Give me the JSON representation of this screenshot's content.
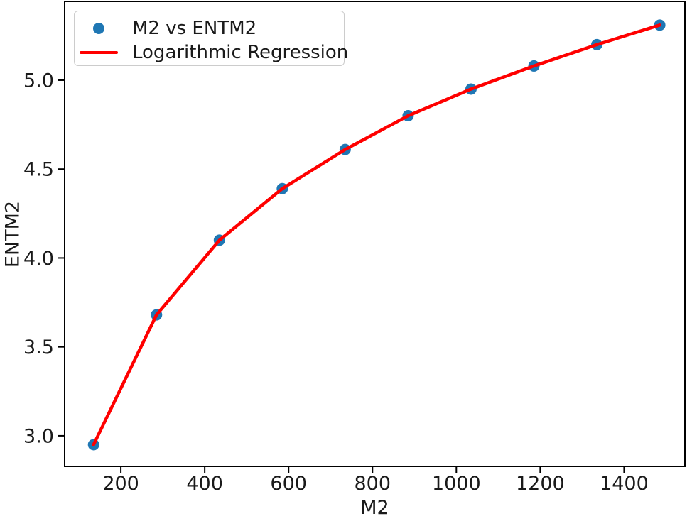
{
  "figure": {
    "background": "#ffffff",
    "text_color": "#1a1a1a",
    "spine_color": "#000000"
  },
  "chart_data": {
    "type": "scatter",
    "title": "",
    "xlabel": "M2",
    "ylabel": "ENTM2",
    "xlim": [
      66,
      1545
    ],
    "ylim": [
      2.828,
      5.443
    ],
    "grid": false,
    "legend_position": "upper left",
    "x_ticks": {
      "values": [
        200,
        400,
        600,
        800,
        1000,
        1200,
        1400
      ],
      "labels": [
        "200",
        "400",
        "600",
        "800",
        "1000",
        "1200",
        "1400"
      ]
    },
    "y_ticks": {
      "values": [
        3.0,
        3.5,
        4.0,
        4.5,
        5.0
      ],
      "labels": [
        "3.0",
        "3.5",
        "4.0",
        "4.5",
        "5.0"
      ]
    },
    "series": [
      {
        "name": "M2 vs ENTM2",
        "type": "scatter",
        "color": "#1f77b4",
        "marker": "circle",
        "x": [
          135,
          285,
          435,
          585,
          735,
          885,
          1035,
          1185,
          1335,
          1485
        ],
        "y": [
          2.95,
          3.68,
          4.1,
          4.39,
          4.61,
          4.8,
          4.95,
          5.08,
          5.2,
          5.31
        ]
      },
      {
        "name": "Logarithmic Regression",
        "type": "line",
        "color": "#ff0000",
        "x": [
          135,
          285,
          435,
          585,
          735,
          885,
          1035,
          1185,
          1335,
          1485
        ],
        "y": [
          2.95,
          3.68,
          4.1,
          4.39,
          4.61,
          4.8,
          4.95,
          5.08,
          5.2,
          5.31
        ]
      }
    ]
  }
}
